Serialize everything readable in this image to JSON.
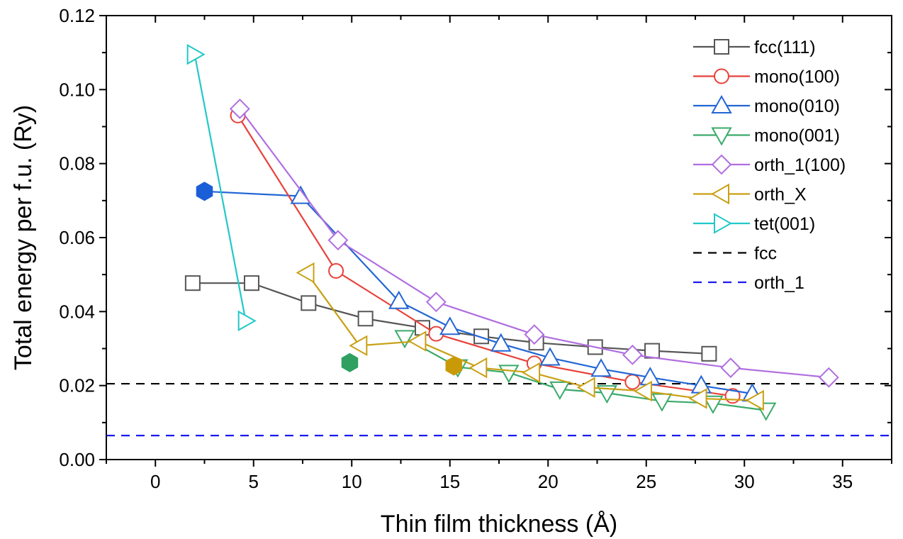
{
  "chart_data": {
    "type": "line",
    "xlabel": "Thin film thickness (Å)",
    "ylabel": "Total energy per f.u. (Ry)",
    "xlim": [
      -2.5,
      37.5
    ],
    "ylim": [
      0.0,
      0.12
    ],
    "xticks": [
      "0",
      "5",
      "10",
      "15",
      "20",
      "25",
      "30",
      "35"
    ],
    "yticks": [
      "0.00",
      "0.02",
      "0.04",
      "0.06",
      "0.08",
      "0.10",
      "0.12"
    ],
    "xtick_values": [
      0,
      5,
      10,
      15,
      20,
      25,
      30,
      35
    ],
    "ytick_values": [
      0.0,
      0.02,
      0.04,
      0.06,
      0.08,
      0.1,
      0.12
    ],
    "legend_position": "top-right",
    "series": [
      {
        "name": "fcc(111)",
        "color": "#555555",
        "marker": "square",
        "line": "solid",
        "x": [
          1.9,
          4.9,
          7.8,
          10.7,
          13.6,
          16.6,
          19.4,
          22.4,
          25.3,
          28.2
        ],
        "y": [
          0.0477,
          0.0477,
          0.0423,
          0.0381,
          0.0356,
          0.0333,
          0.0316,
          0.0304,
          0.0294,
          0.0286
        ]
      },
      {
        "name": "mono(100)",
        "color": "#e8413a",
        "marker": "circle",
        "line": "solid",
        "x": [
          4.2,
          9.2,
          14.3,
          19.3,
          24.3,
          29.4
        ],
        "y": [
          0.093,
          0.051,
          0.034,
          0.026,
          0.021,
          0.0172
        ]
      },
      {
        "name": "mono(010)",
        "color": "#2266d4",
        "marker": "triangle-up",
        "line": "solid",
        "x": [
          7.4,
          12.4,
          15.0,
          17.6,
          20.1,
          22.7,
          25.2,
          27.8,
          30.4
        ],
        "y": [
          0.0712,
          0.0428,
          0.0358,
          0.0313,
          0.0275,
          0.0245,
          0.0222,
          0.02,
          0.0178
        ]
      },
      {
        "name": "mono(001)",
        "color": "#3aaa6a",
        "marker": "triangle-down",
        "line": "solid",
        "x": [
          12.7,
          15.4,
          18.0,
          20.6,
          23.0,
          25.8,
          28.4,
          31.1
        ],
        "y": [
          0.0329,
          0.025,
          0.0235,
          0.019,
          0.018,
          0.0158,
          0.0152,
          0.0133
        ]
      },
      {
        "name": "orth_1(100)",
        "color": "#b06ee0",
        "marker": "diamond",
        "line": "solid",
        "x": [
          4.3,
          9.3,
          14.3,
          19.3,
          24.3,
          29.3,
          34.3
        ],
        "y": [
          0.0948,
          0.0593,
          0.0426,
          0.0338,
          0.0283,
          0.0248,
          0.0222
        ]
      },
      {
        "name": "orth_X",
        "color": "#c9a014",
        "marker": "triangle-left",
        "line": "solid",
        "x": [
          7.7,
          10.4,
          13.4,
          16.5,
          19.2,
          22.0,
          24.9,
          27.7,
          30.6
        ],
        "y": [
          0.0505,
          0.0308,
          0.032,
          0.0248,
          0.0235,
          0.0195,
          0.0185,
          0.0165,
          0.016
        ]
      },
      {
        "name": "tet(001)",
        "color": "#22c8c8",
        "marker": "triangle-right",
        "line": "solid",
        "x": [
          2.0,
          4.6
        ],
        "y": [
          0.1095,
          0.0375
        ]
      },
      {
        "name": "fcc",
        "color": "#000000",
        "marker": "none",
        "line": "dashed",
        "hline": 0.0205
      },
      {
        "name": "orth_1",
        "color": "#1a1aee",
        "marker": "none",
        "line": "dashed",
        "hline": 0.0065
      }
    ],
    "filled_markers": [
      {
        "series": "mono(010)",
        "x": 2.5,
        "y": 0.0725,
        "color": "#1a5ed8",
        "shape": "hexagon"
      },
      {
        "series": "mono(001)",
        "x": 9.9,
        "y": 0.0262,
        "color": "#2fa060",
        "shape": "hexagon"
      },
      {
        "series": "orth_X",
        "x": 15.2,
        "y": 0.0253,
        "color": "#c89a08",
        "shape": "hexagon"
      }
    ]
  }
}
